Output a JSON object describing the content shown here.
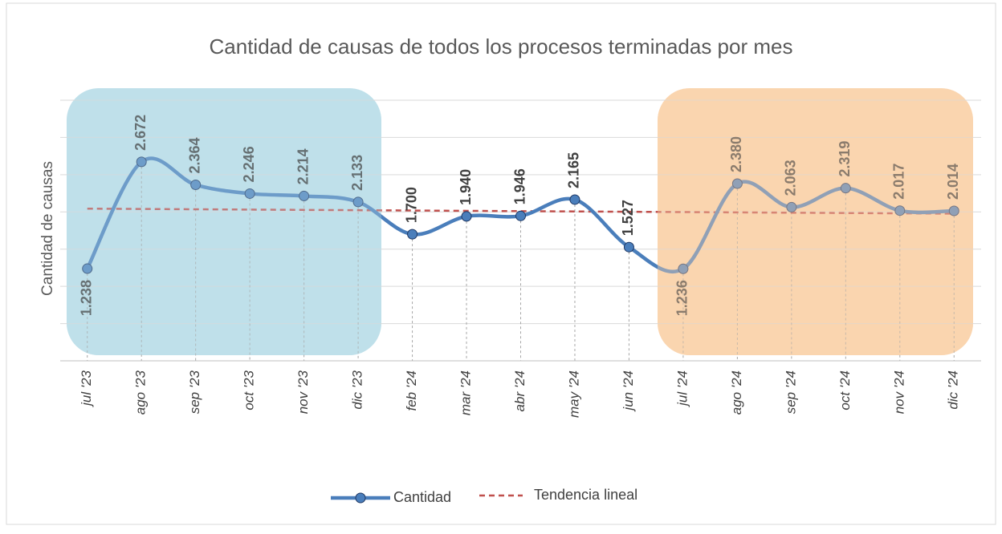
{
  "chart_data": {
    "type": "line",
    "title": "Cantidad de causas de todos los procesos terminadas por mes",
    "y_label": "Cantidad de causas",
    "categories": [
      "jul '23",
      "ago '23",
      "sep '23",
      "oct '23",
      "nov '23",
      "dic '23",
      "feb '24",
      "mar '24",
      "abr '24",
      "may '24",
      "jun '24",
      "jul '24",
      "ago '24",
      "sep '24",
      "oct '24",
      "nov '24",
      "dic '24"
    ],
    "series": [
      {
        "name": "Cantidad",
        "color": "#4a7ebb",
        "values": [
          1238,
          2672,
          2364,
          2246,
          2214,
          2133,
          1700,
          1940,
          1946,
          2165,
          1527,
          1236,
          2380,
          2063,
          2319,
          2017,
          2014
        ],
        "value_labels": [
          "1.238",
          "2.672",
          "2.364",
          "2.246",
          "2.214",
          "2.133",
          "1.700",
          "1.940",
          "1.946",
          "2.165",
          "1.527",
          "1.236",
          "2.380",
          "2.063",
          "2.319",
          "2.017",
          "2.014"
        ]
      }
    ],
    "trendline": {
      "name": "Tendencia lineal",
      "color": "#c0504d"
    },
    "ylim": [
      0,
      3500
    ],
    "yticks": [
      0,
      500,
      1000,
      1500,
      2000,
      2500,
      3000,
      3500
    ],
    "grid": true
  }
}
